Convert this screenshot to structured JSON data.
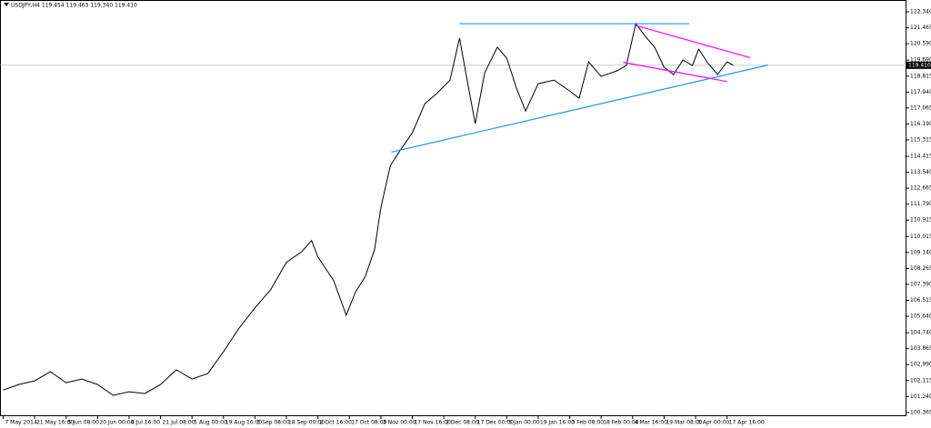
{
  "chart_data": {
    "type": "line",
    "title": "USDJPY,H4  119.454 119.463 119.340 119.410",
    "x": [
      0,
      0.5,
      1.0,
      1.5,
      2.0,
      2.5,
      3.0,
      3.5,
      4.0,
      4.5,
      5.0,
      5.5,
      6.0,
      6.5,
      7.0,
      7.5,
      8.0,
      8.5,
      9.0,
      9.5,
      9.8,
      10.0,
      10.5,
      10.9,
      11.2,
      11.5,
      11.8,
      12.0,
      12.3,
      12.6,
      13.0,
      13.4,
      13.8,
      14.2,
      14.5,
      14.7,
      15.0,
      15.3,
      15.7,
      16.0,
      16.3,
      16.6,
      17.0,
      17.5,
      18.0,
      18.3,
      18.6,
      19.0,
      19.5,
      19.8,
      20.1,
      20.4,
      20.7,
      21.0,
      21.3,
      21.6,
      21.9,
      22.1,
      22.4,
      22.7,
      23.0,
      23.2
    ],
    "series": [
      {
        "color": "#000000",
        "values": [
          101.6,
          101.9,
          102.1,
          102.6,
          102.0,
          102.2,
          101.9,
          101.3,
          101.5,
          101.4,
          101.9,
          102.7,
          102.2,
          102.5,
          103.7,
          105.0,
          106.1,
          107.1,
          108.6,
          109.2,
          109.8,
          108.9,
          107.6,
          105.7,
          107.0,
          107.8,
          109.3,
          111.6,
          113.9,
          114.7,
          115.7,
          117.3,
          117.9,
          118.6,
          120.9,
          119.0,
          116.2,
          119.0,
          120.4,
          119.8,
          118.2,
          116.9,
          118.4,
          118.6,
          118.0,
          117.6,
          119.6,
          118.8,
          119.1,
          119.4,
          121.7,
          121.0,
          120.4,
          119.3,
          118.9,
          119.7,
          119.4,
          120.3,
          119.5,
          118.9,
          119.6,
          119.41
        ]
      }
    ],
    "trendlines": [
      {
        "color": "#1e90ff",
        "x": [
          14.5,
          21.8
        ],
        "y": [
          121.69,
          121.69
        ]
      },
      {
        "color": "#1e90ff",
        "x": [
          12.34,
          24.3
        ],
        "y": [
          114.65,
          119.42
        ]
      },
      {
        "color": "#ff00ff",
        "x": [
          20.1,
          23.73
        ],
        "y": [
          121.59,
          119.83
        ]
      },
      {
        "color": "#ff00ff",
        "x": [
          19.7,
          23.0
        ],
        "y": [
          119.57,
          118.52
        ]
      }
    ],
    "price_line": {
      "value": 119.41,
      "label": "119.410"
    },
    "xlim": [
      -0.1,
      28.7
    ],
    "xticks": [
      {
        "value": 0,
        "label": "7 May 2014"
      },
      {
        "value": 1,
        "label": "21 May 16:00"
      },
      {
        "value": 2,
        "label": "5 Jun 08:00"
      },
      {
        "value": 3,
        "label": "20 Jun 00:00"
      },
      {
        "value": 4,
        "label": "4 Jul 16:00"
      },
      {
        "value": 5,
        "label": "21 Jul 08:00"
      },
      {
        "value": 6,
        "label": "5 Aug 00:00"
      },
      {
        "value": 7,
        "label": "19 Aug 16:00"
      },
      {
        "value": 8,
        "label": "3 Sep 08:00"
      },
      {
        "value": 9,
        "label": "18 Sep 00:00"
      },
      {
        "value": 10,
        "label": "2 Oct 16:00"
      },
      {
        "value": 11,
        "label": "17 Oct 08:00"
      },
      {
        "value": 12,
        "label": "3 Nov 00:00"
      },
      {
        "value": 13,
        "label": "17 Nov 16:00"
      },
      {
        "value": 14,
        "label": "2 Dec 08:00"
      },
      {
        "value": 15,
        "label": "17 Dec 00:00"
      },
      {
        "value": 16,
        "label": "5 Jan 00:00"
      },
      {
        "value": 17,
        "label": "19 Jan 16:00"
      },
      {
        "value": 18,
        "label": "3 Feb 08:00"
      },
      {
        "value": 19,
        "label": "18 Feb 00:00"
      },
      {
        "value": 20,
        "label": "4 Mar 16:00"
      },
      {
        "value": 21,
        "label": "19 Mar 08:00"
      },
      {
        "value": 22,
        "label": "3 Apr 00:00"
      },
      {
        "value": 23,
        "label": "17 Apr 16:00"
      }
    ],
    "ylim": [
      100.16,
      122.94
    ],
    "yticks": [
      {
        "value": 122.34,
        "label": "122.340"
      },
      {
        "value": 121.465,
        "label": "121.465"
      },
      {
        "value": 120.59,
        "label": "120.590"
      },
      {
        "value": 119.69,
        "label": "119.690"
      },
      {
        "value": 118.815,
        "label": "118.815"
      },
      {
        "value": 117.94,
        "label": "117.940"
      },
      {
        "value": 117.065,
        "label": "117.065"
      },
      {
        "value": 116.19,
        "label": "116.190"
      },
      {
        "value": 115.315,
        "label": "115.315"
      },
      {
        "value": 114.415,
        "label": "114.415"
      },
      {
        "value": 113.54,
        "label": "113.540"
      },
      {
        "value": 112.665,
        "label": "112.665"
      },
      {
        "value": 111.79,
        "label": "111.790"
      },
      {
        "value": 110.915,
        "label": "110.915"
      },
      {
        "value": 110.015,
        "label": "110.015"
      },
      {
        "value": 109.14,
        "label": "109.140"
      },
      {
        "value": 108.265,
        "label": "108.265"
      },
      {
        "value": 107.39,
        "label": "107.390"
      },
      {
        "value": 106.515,
        "label": "106.515"
      },
      {
        "value": 105.64,
        "label": "105.640"
      },
      {
        "value": 104.74,
        "label": "104.740"
      },
      {
        "value": 103.865,
        "label": "103.865"
      },
      {
        "value": 102.99,
        "label": "102.990"
      },
      {
        "value": 102.115,
        "label": "102.115"
      },
      {
        "value": 101.24,
        "label": "101.240"
      },
      {
        "value": 100.365,
        "label": "100.365"
      }
    ]
  }
}
